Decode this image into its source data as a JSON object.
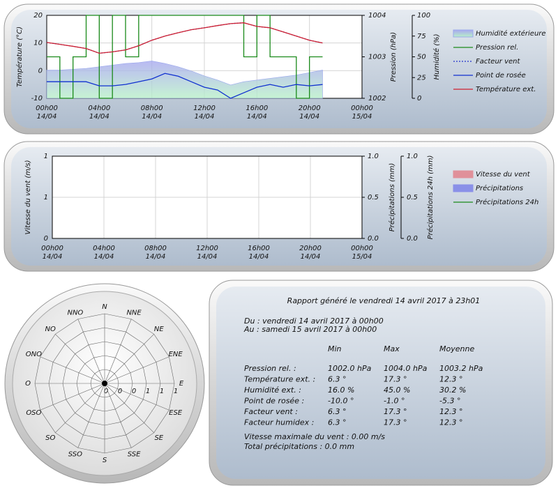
{
  "chart_data": [
    {
      "type": "line",
      "xlim": [
        0,
        24
      ],
      "xticks": [
        {
          "value": 0,
          "label": "00h00",
          "date": "14/04"
        },
        {
          "value": 4,
          "label": "04h00",
          "date": "14/04"
        },
        {
          "value": 8,
          "label": "08h00",
          "date": "14/04"
        },
        {
          "value": 12,
          "label": "12h00",
          "date": "14/04"
        },
        {
          "value": 16,
          "label": "16h00",
          "date": "14/04"
        },
        {
          "value": 20,
          "label": "20h00",
          "date": "14/04"
        },
        {
          "value": 24,
          "label": "00h00",
          "date": "15/04"
        }
      ],
      "x": [
        0,
        1,
        2,
        3,
        4,
        5,
        6,
        7,
        8,
        9,
        10,
        11,
        12,
        13,
        14,
        15,
        16,
        17,
        18,
        19,
        20,
        21
      ],
      "ylabel": "Température (°C)",
      "ylim": [
        -10,
        20
      ],
      "yticks": [
        -10,
        0,
        10,
        20
      ],
      "y2label": "Pression (hPa)",
      "y2lim": [
        1002,
        1004
      ],
      "y2ticks": [
        1002,
        1003,
        1004
      ],
      "y3label": "Humidité (%)",
      "y3lim": [
        0,
        100
      ],
      "y3ticks": [
        0,
        25,
        50,
        75,
        100
      ],
      "grid": true,
      "legend": "right",
      "series": [
        {
          "name": "Humidité extérieure",
          "color": "#9aa8ec",
          "style": "area",
          "axis": "y3",
          "values": [
            34,
            34,
            35,
            36,
            38,
            40,
            42,
            43,
            45,
            42,
            38,
            33,
            27,
            22,
            16,
            20,
            22,
            24,
            26,
            28,
            31,
            34
          ]
        },
        {
          "name": "Pression rel.",
          "color": "#1a8a1a",
          "style": "step",
          "axis": "y2",
          "values": [
            1003,
            1002,
            1003,
            1004,
            1002,
            1004,
            1003,
            1004,
            1004,
            1004,
            1004,
            1004,
            1004,
            1004,
            1004,
            1003,
            1004,
            1003,
            1003,
            1002,
            1003,
            1003
          ]
        },
        {
          "name": "Facteur vent",
          "color": "#2233cc",
          "style": "dotted",
          "axis": "y",
          "values": [
            10.2,
            9.5,
            8.8,
            8,
            6.3,
            6.8,
            7.5,
            9,
            11,
            12.5,
            13.7,
            14.8,
            15.5,
            16.3,
            17,
            17.3,
            16,
            15.5,
            14,
            12.5,
            11,
            10
          ]
        },
        {
          "name": "Point de rosée",
          "color": "#1030d0",
          "style": "line",
          "axis": "y",
          "values": [
            -4,
            -4,
            -4,
            -4,
            -5.5,
            -5.5,
            -5,
            -4,
            -3,
            -1,
            -2,
            -4,
            -6,
            -7,
            -10,
            -8,
            -6,
            -5,
            -6,
            -5,
            -5.5,
            -5
          ]
        },
        {
          "name": "Température ext.",
          "color": "#d02030",
          "style": "line",
          "axis": "y",
          "values": [
            10.2,
            9.5,
            8.8,
            8,
            6.3,
            6.8,
            7.5,
            9,
            11,
            12.5,
            13.7,
            14.8,
            15.5,
            16.3,
            17,
            17.3,
            16,
            15.5,
            14,
            12.5,
            11,
            10
          ]
        }
      ]
    },
    {
      "type": "line",
      "xlim": [
        0,
        24
      ],
      "xticks": [
        {
          "value": 0,
          "label": "00h00",
          "date": "14/04"
        },
        {
          "value": 4,
          "label": "04h00",
          "date": "14/04"
        },
        {
          "value": 8,
          "label": "08h00",
          "date": "14/04"
        },
        {
          "value": 12,
          "label": "12h00",
          "date": "14/04"
        },
        {
          "value": 16,
          "label": "16h00",
          "date": "14/04"
        },
        {
          "value": 20,
          "label": "20h00",
          "date": "14/04"
        },
        {
          "value": 24,
          "label": "00h00",
          "date": "15/04"
        }
      ],
      "x": [],
      "ylabel": "Vitesse du vent (m/s)",
      "ylim": [
        0,
        1
      ],
      "yticks": [
        0,
        {
          "value": 0.5,
          "label": "1"
        },
        1
      ],
      "y2label": "Précipitations (mm)",
      "y2lim": [
        0,
        1
      ],
      "y2ticks": [
        {
          "value": 0,
          "label": "0.0"
        },
        {
          "value": 0.5,
          "label": "0.5"
        },
        {
          "value": 1,
          "label": "1.0"
        }
      ],
      "y3label": "Précipitations 24h (mm)",
      "y3lim": [
        0,
        1
      ],
      "y3ticks": [
        {
          "value": 0,
          "label": "0.0"
        },
        {
          "value": 0.5,
          "label": "0.5"
        },
        {
          "value": 1,
          "label": "1.0"
        }
      ],
      "grid": true,
      "legend": "right",
      "series": [
        {
          "name": "Vitesse du vent",
          "color": "#e0909a",
          "style": "area",
          "axis": "y",
          "values": []
        },
        {
          "name": "Précipitations",
          "color": "#8a90e8",
          "style": "area",
          "axis": "y2",
          "values": []
        },
        {
          "name": "Précipitations 24h",
          "color": "#1a8a1a",
          "style": "line",
          "axis": "y3",
          "values": []
        }
      ]
    },
    {
      "type": "windrose",
      "categories": [
        "N",
        "NNE",
        "NE",
        "ENE",
        "E",
        "ESE",
        "SE",
        "SSE",
        "S",
        "SSO",
        "SO",
        "OSO",
        "O",
        "ONO",
        "NO",
        "NNO"
      ],
      "rlim": [
        0,
        1
      ],
      "rticks": [
        0,
        {
          "value": 0.2,
          "label": "0"
        },
        {
          "value": 0.4,
          "label": "0"
        },
        {
          "value": 0.6,
          "label": "1"
        },
        {
          "value": 0.8,
          "label": "1"
        },
        1
      ]
    }
  ],
  "report": {
    "title": "Rapport généré le vendredi 14 avril 2017 à 23h01",
    "from": "Du : vendredi 14 avril 2017 à 00h00",
    "to": "Au : samedi 15 avril 2017 à 00h00",
    "header": [
      "Min",
      "Max",
      "Moyenne"
    ],
    "rows": [
      [
        "Pression rel. :",
        "1002.0 hPa",
        "1004.0 hPa",
        "1003.2 hPa"
      ],
      [
        "Température ext. :",
        "6.3 °",
        "17.3 °",
        "12.3 °"
      ],
      [
        "Humidité ext. :",
        "16.0 %",
        "45.0 %",
        "30.2 %"
      ],
      [
        "Point de rosée :",
        "-10.0 °",
        "-1.0 °",
        "-5.3 °"
      ],
      [
        "Facteur vent :",
        "6.3 °",
        "17.3 °",
        "12.3 °"
      ],
      [
        "Facteur humidex :",
        "6.3 °",
        "17.3 °",
        "12.3 °"
      ]
    ],
    "footer": [
      "Vitesse maximale du vent : 0.00 m/s",
      "Total précipitations : 0.0 mm"
    ]
  }
}
